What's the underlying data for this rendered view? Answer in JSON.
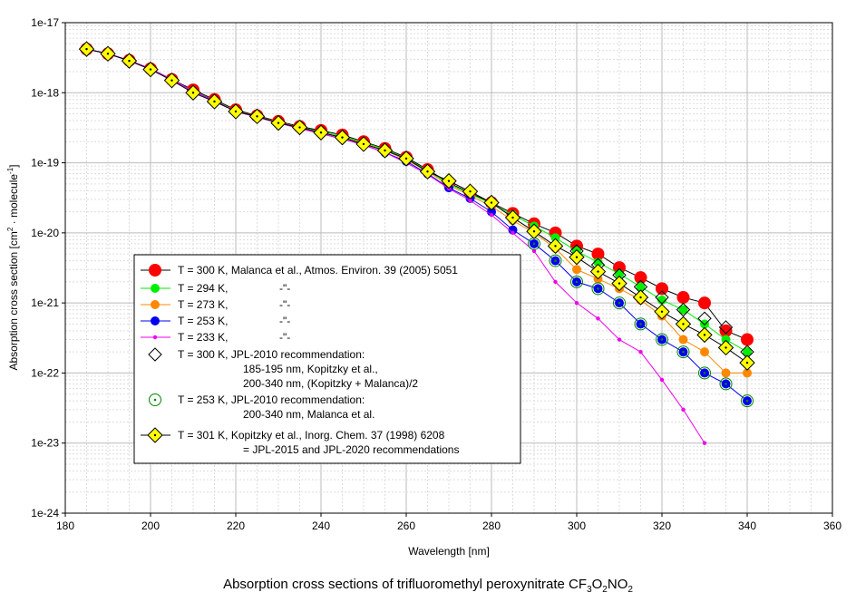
{
  "chart_data": {
    "type": "line",
    "xlabel": "Wavelength [nm]",
    "ylabel": "Absorption cross section [cm² · molecule⁻¹]",
    "ylabel_main": "Absorption cross section [cm",
    "ylabel_sup1": "2",
    "ylabel_mid": " · molecule",
    "ylabel_sup2": "-1",
    "ylabel_end": "]",
    "xlim": [
      180,
      360
    ],
    "ylim_log10": [
      -24,
      -17
    ],
    "x_ticks": [
      180,
      200,
      220,
      240,
      260,
      280,
      300,
      320,
      340,
      360
    ],
    "y_ticks": [
      "1e-17",
      "1e-18",
      "1e-19",
      "1e-20",
      "1e-21",
      "1e-22",
      "1e-23",
      "1e-24"
    ],
    "y_tick_exps": [
      -17,
      -18,
      -19,
      -20,
      -21,
      -22,
      -23,
      -24
    ],
    "grid": true,
    "legend_position": "lower-left inside plot",
    "series": [
      {
        "name": "T = 300 K, Malanca et al., Atmos. Environ. 39 (2005) 5051",
        "marker": "circle-large",
        "color": "#ff0000",
        "x": [
          185,
          190,
          195,
          200,
          205,
          210,
          215,
          220,
          225,
          230,
          235,
          240,
          245,
          250,
          255,
          260,
          265,
          270,
          275,
          280,
          285,
          290,
          295,
          300,
          305,
          310,
          315,
          320,
          325,
          330,
          335,
          340
        ],
        "y": [
          4.2e-18,
          3.6e-18,
          2.9e-18,
          2.2e-18,
          1.55e-18,
          1.1e-18,
          8e-19,
          5.7e-19,
          4.7e-19,
          3.9e-19,
          3.3e-19,
          2.9e-19,
          2.5e-19,
          2e-19,
          1.6e-19,
          1.2e-19,
          8e-20,
          5.2e-20,
          3.7e-20,
          2.7e-20,
          1.9e-20,
          1.35e-20,
          1e-20,
          6.5e-21,
          5e-21,
          3.2e-21,
          2.3e-21,
          1.6e-21,
          1.2e-21,
          1e-21,
          4e-22,
          3e-22
        ]
      },
      {
        "name": "T = 294 K,",
        "marker": "circle",
        "color": "#00ee00",
        "x": [
          185,
          190,
          195,
          200,
          205,
          210,
          215,
          220,
          225,
          230,
          235,
          240,
          245,
          250,
          255,
          260,
          265,
          270,
          275,
          280,
          285,
          290,
          295,
          300,
          305,
          310,
          315,
          320,
          325,
          330,
          335,
          340
        ],
        "y": [
          4.2e-18,
          3.6e-18,
          2.9e-18,
          2.2e-18,
          1.55e-18,
          1.05e-18,
          7.8e-19,
          5.5e-19,
          4.6e-19,
          3.8e-19,
          3.2e-19,
          2.8e-19,
          2.4e-19,
          1.95e-19,
          1.55e-19,
          1.15e-19,
          7.8e-20,
          5e-20,
          3.6e-20,
          2.6e-20,
          1.8e-20,
          1.25e-20,
          8.5e-21,
          5.5e-21,
          3.8e-21,
          2.6e-21,
          1.7e-21,
          1.1e-21,
          8e-22,
          5e-22,
          3e-22,
          2e-22
        ]
      },
      {
        "name": "T = 273 K,",
        "marker": "circle",
        "color": "#ff8800",
        "x": [
          185,
          190,
          195,
          200,
          205,
          210,
          215,
          220,
          225,
          230,
          235,
          240,
          245,
          250,
          255,
          260,
          265,
          270,
          275,
          280,
          285,
          290,
          295,
          300,
          305,
          310,
          315,
          320,
          325,
          330,
          335,
          340
        ],
        "y": [
          4.2e-18,
          3.6e-18,
          2.9e-18,
          2.2e-18,
          1.55e-18,
          1.05e-18,
          7.7e-19,
          5.5e-19,
          4.6e-19,
          3.8e-19,
          3.2e-19,
          2.7e-19,
          2.3e-19,
          1.9e-19,
          1.5e-19,
          1.1e-19,
          7.5e-20,
          4.8e-20,
          3.4e-20,
          2.4e-20,
          1.5e-20,
          1e-20,
          6e-21,
          3e-21,
          2.2e-21,
          1.6e-21,
          1.1e-21,
          6.5e-22,
          3e-22,
          2e-22,
          1e-22,
          1e-22
        ]
      },
      {
        "name": "T = 253 K,",
        "marker": "circle",
        "color": "#0000ee",
        "x": [
          185,
          190,
          195,
          200,
          205,
          210,
          215,
          220,
          225,
          230,
          235,
          240,
          245,
          250,
          255,
          260,
          265,
          270,
          275,
          280,
          285,
          290,
          295,
          300,
          305,
          310,
          315,
          320,
          325,
          330,
          335,
          340
        ],
        "y": [
          4.2e-18,
          3.6e-18,
          2.9e-18,
          2.2e-18,
          1.55e-18,
          1.05e-18,
          7.7e-19,
          5.4e-19,
          4.5e-19,
          3.7e-19,
          3.1e-19,
          2.6e-19,
          2.2e-19,
          1.8e-19,
          1.4e-19,
          1.05e-19,
          7e-20,
          4.4e-20,
          3.1e-20,
          2e-20,
          1.1e-20,
          7e-21,
          4e-21,
          2e-21,
          1.6e-21,
          1e-21,
          5e-22,
          3e-22,
          2e-22,
          1e-22,
          7e-23,
          4e-23
        ]
      },
      {
        "name": "T = 233 K,",
        "marker": "dot-small",
        "color": "#ee00ee",
        "x": [
          185,
          190,
          195,
          200,
          205,
          210,
          215,
          220,
          225,
          230,
          235,
          240,
          245,
          250,
          255,
          260,
          265,
          270,
          275,
          280,
          285,
          290,
          295,
          300,
          305,
          310,
          315,
          320,
          325,
          330
        ],
        "y": [
          4.2e-18,
          3.6e-18,
          2.9e-18,
          2.2e-18,
          1.55e-18,
          1.05e-18,
          7.6e-19,
          5.4e-19,
          4.5e-19,
          3.7e-19,
          3.1e-19,
          2.6e-19,
          2.2e-19,
          1.8e-19,
          1.4e-19,
          1e-19,
          6.8e-20,
          4.3e-20,
          2.9e-20,
          1.8e-20,
          1e-20,
          5.5e-21,
          2e-21,
          1e-21,
          6e-22,
          3e-22,
          2e-22,
          8e-23,
          3e-23,
          1e-23
        ]
      },
      {
        "name": "T = 300 K, JPL-2010 recommendation: 185-195 nm, Kopitzky et al., 200-340 nm, (Kopitzky + Malanca)/2",
        "marker": "diamond-open",
        "color": "#000000",
        "x": [
          300,
          305,
          310,
          315,
          320,
          325,
          330,
          335,
          340
        ],
        "y": [
          5.5e-21,
          3.5e-21,
          2.5e-21,
          1.7e-21,
          1.2e-21,
          8e-22,
          6e-22,
          4.5e-22,
          2e-22
        ]
      },
      {
        "name": "T = 253 K, JPL-2010 recommendation: 200-340 nm, Malanca et al.",
        "marker": "circle-dot-open",
        "color": "#008800",
        "x": [
          290,
          295,
          300,
          305,
          310,
          315,
          320,
          325,
          330,
          335,
          340
        ],
        "y": [
          7e-21,
          4e-21,
          2e-21,
          1.6e-21,
          1e-21,
          5e-22,
          3e-22,
          2e-22,
          1e-22,
          7e-23,
          4e-23
        ]
      },
      {
        "name": "T = 301 K, Kopitzky et al., Inorg. Chem. 37 (1998) 6208 = JPL-2015 and JPL-2020 recommendations",
        "marker": "diamond",
        "color": "#ffff00",
        "x": [
          185,
          190,
          195,
          200,
          205,
          210,
          215,
          220,
          225,
          230,
          235,
          240,
          245,
          250,
          255,
          260,
          265,
          270,
          275,
          280,
          285,
          290,
          295,
          300,
          305,
          310,
          315,
          320,
          325,
          330,
          335,
          340
        ],
        "y": [
          4.2e-18,
          3.6e-18,
          2.85e-18,
          2.15e-18,
          1.5e-18,
          1e-18,
          7.5e-19,
          5.4e-19,
          4.6e-19,
          3.7e-19,
          3.2e-19,
          2.7e-19,
          2.3e-19,
          1.85e-19,
          1.5e-19,
          1.15e-19,
          7.5e-20,
          5.5e-20,
          3.9e-20,
          2.7e-20,
          1.65e-20,
          1.05e-20,
          6.5e-21,
          4.5e-21,
          2.8e-21,
          1.9e-21,
          1.2e-21,
          7.5e-22,
          5e-22,
          3.5e-22,
          2.3e-22,
          1.4e-22
        ]
      }
    ],
    "legend": [
      {
        "lines": [
          "T = 300 K, Malanca et al., Atmos. Environ. 39 (2005) 5051"
        ],
        "marker": "circle-large",
        "color": "#ff0000"
      },
      {
        "lines": [
          "T = 294 K,",
          "-\"-"
        ],
        "marker": "circle",
        "color": "#00ee00"
      },
      {
        "lines": [
          "T = 273 K,",
          "-\"-"
        ],
        "marker": "circle",
        "color": "#ff8800"
      },
      {
        "lines": [
          "T = 253 K,",
          "-\"-"
        ],
        "marker": "circle",
        "color": "#0000ee"
      },
      {
        "lines": [
          "T = 233 K,",
          "-\"-"
        ],
        "marker": "dot-small",
        "color": "#ee00ee"
      },
      {
        "lines": [
          "T = 300 K, JPL-2010 recommendation:",
          "185-195 nm, Kopitzky et al.,",
          "200-340 nm, (Kopitzky + Malanca)/2"
        ],
        "marker": "diamond-open",
        "color": "#000000"
      },
      {
        "lines": [
          "T = 253 K, JPL-2010 recommendation:",
          "200-340 nm, Malanca et al."
        ],
        "marker": "circle-dot-open",
        "color": "#008800"
      },
      {
        "lines": [
          "T = 301 K, Kopitzky et al., Inorg. Chem. 37 (1998) 6208",
          "=  JPL-2015 and JPL-2020 recommendations"
        ],
        "marker": "diamond",
        "color": "#ffff00"
      }
    ],
    "caption_main": "Absorption cross sections of trifluoromethyl peroxynitrate CF",
    "caption_sub1": "3",
    "caption_mid1": "O",
    "caption_sub2": "2",
    "caption_mid2": "NO",
    "caption_sub3": "2"
  }
}
